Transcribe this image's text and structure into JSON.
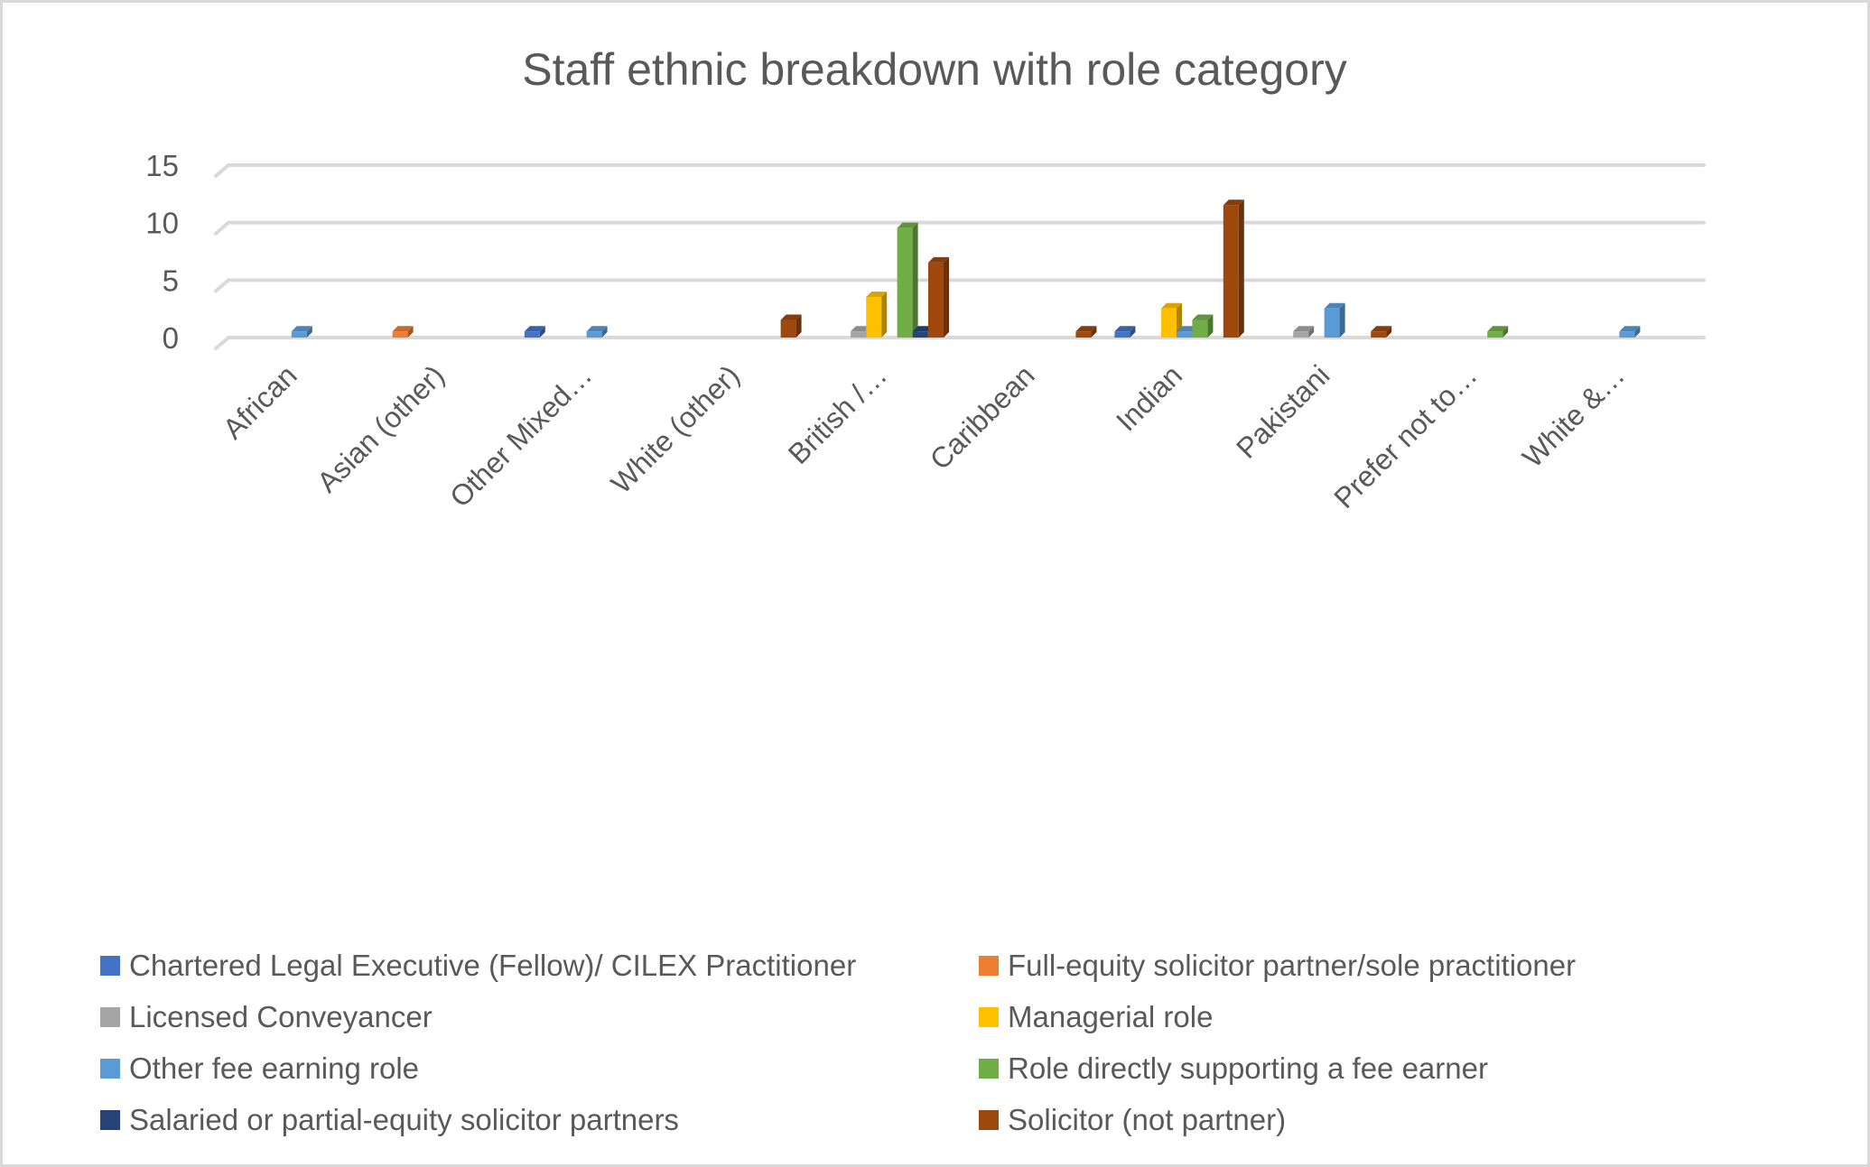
{
  "chart_data": {
    "type": "bar",
    "style": "3d-clustered-column",
    "title": "Staff ethnic breakdown with role category",
    "xlabel": "",
    "ylabel": "",
    "ylim": [
      0,
      15
    ],
    "yticks": [
      "0",
      "5",
      "10",
      "15"
    ],
    "ytick_values": [
      0,
      5,
      10,
      15
    ],
    "grid": true,
    "legend_position": "bottom",
    "categories": [
      "African",
      "Asian (other)",
      "Other Mixed…",
      "White (other)",
      "British /…",
      "Caribbean",
      "Indian",
      "Pakistani",
      "Prefer not to…",
      "White &…"
    ],
    "series": [
      {
        "name": "Chartered Legal Executive (Fellow)/ CILEX Practitioner",
        "color": "#4472c4",
        "values": [
          0,
          0,
          1,
          0,
          0,
          0,
          1,
          0,
          0,
          0
        ]
      },
      {
        "name": "Full-equity solicitor partner/sole practitioner",
        "color": "#ed7d31",
        "values": [
          0,
          1,
          0,
          0,
          0,
          0,
          0,
          0,
          0,
          0
        ]
      },
      {
        "name": "Licensed Conveyancer",
        "color": "#a5a5a5",
        "values": [
          0,
          0,
          0,
          0,
          1,
          0,
          0,
          1,
          0,
          0
        ]
      },
      {
        "name": "Managerial role",
        "color": "#ffc000",
        "values": [
          0,
          0,
          0,
          0,
          4,
          0,
          3,
          0,
          0,
          0
        ]
      },
      {
        "name": "Other fee earning role",
        "color": "#5b9bd5",
        "values": [
          1,
          0,
          1,
          0,
          0,
          0,
          1,
          3,
          0,
          1
        ]
      },
      {
        "name": "Role directly supporting a fee earner",
        "color": "#70ad47",
        "values": [
          0,
          0,
          0,
          0,
          10,
          0,
          2,
          0,
          1,
          0
        ]
      },
      {
        "name": "Salaried or partial-equity solicitor partners",
        "color": "#264478",
        "values": [
          0,
          0,
          0,
          0,
          1,
          0,
          0,
          0,
          0,
          0
        ]
      },
      {
        "name": "Solicitor (not partner)",
        "color": "#9e480e",
        "values": [
          0,
          0,
          0,
          2,
          7,
          1,
          12,
          1,
          0,
          0
        ]
      }
    ]
  }
}
